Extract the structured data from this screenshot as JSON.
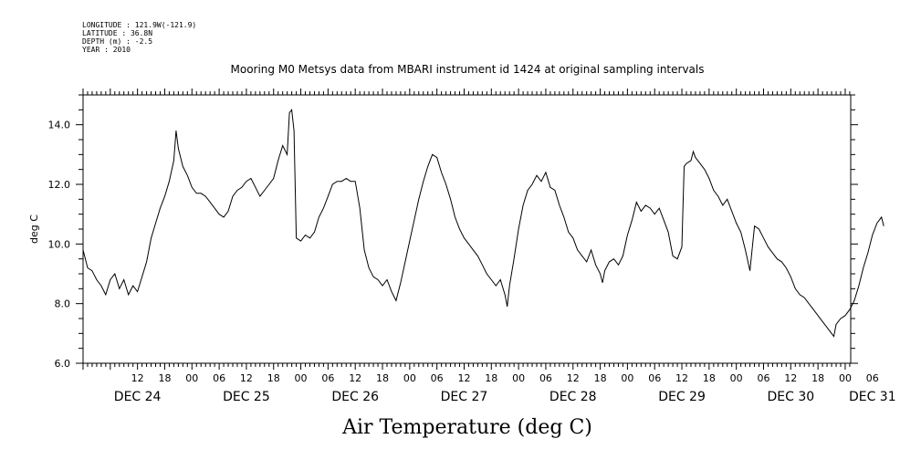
{
  "header": {
    "longitude": "LONGITUDE : 121.9W(-121.9)",
    "latitude": "LATITUDE : 36.8N",
    "depth": "DEPTH (m) : -2.5",
    "year": "YEAR : 2010"
  },
  "chart_data": {
    "type": "line",
    "title": "Mooring M0 Metsys data from MBARI instrument id 1424 at original sampling intervals",
    "xlabel": "Air Temperature (deg C)",
    "ylabel": "deg C",
    "ylim": [
      6.0,
      15.0
    ],
    "yticks": [
      6.0,
      8.0,
      10.0,
      12.0,
      14.0
    ],
    "yticklabels": [
      "6.0",
      "8.0",
      "10.0",
      "12.0",
      "14.0"
    ],
    "xlim_hours_note": "x axis spans DEC 24 00:00 to DEC 31 09:00",
    "xticks": [
      {
        "day": 24,
        "hour": 12,
        "label": "12"
      },
      {
        "day": 24,
        "hour": 18,
        "label": "18"
      },
      {
        "day": 25,
        "hour": 0,
        "label": "00"
      },
      {
        "day": 25,
        "hour": 6,
        "label": "06"
      },
      {
        "day": 25,
        "hour": 12,
        "label": "12"
      },
      {
        "day": 25,
        "hour": 18,
        "label": "18"
      },
      {
        "day": 26,
        "hour": 0,
        "label": "00"
      },
      {
        "day": 26,
        "hour": 6,
        "label": "06"
      },
      {
        "day": 26,
        "hour": 12,
        "label": "12"
      },
      {
        "day": 26,
        "hour": 18,
        "label": "18"
      },
      {
        "day": 27,
        "hour": 0,
        "label": "00"
      },
      {
        "day": 27,
        "hour": 6,
        "label": "06"
      },
      {
        "day": 27,
        "hour": 12,
        "label": "12"
      },
      {
        "day": 27,
        "hour": 18,
        "label": "18"
      },
      {
        "day": 28,
        "hour": 0,
        "label": "00"
      },
      {
        "day": 28,
        "hour": 6,
        "label": "06"
      },
      {
        "day": 28,
        "hour": 12,
        "label": "12"
      },
      {
        "day": 28,
        "hour": 18,
        "label": "18"
      },
      {
        "day": 29,
        "hour": 0,
        "label": "00"
      },
      {
        "day": 29,
        "hour": 6,
        "label": "06"
      },
      {
        "day": 29,
        "hour": 12,
        "label": "12"
      },
      {
        "day": 29,
        "hour": 18,
        "label": "18"
      },
      {
        "day": 30,
        "hour": 0,
        "label": "00"
      },
      {
        "day": 30,
        "hour": 6,
        "label": "06"
      },
      {
        "day": 30,
        "hour": 12,
        "label": "12"
      },
      {
        "day": 30,
        "hour": 18,
        "label": "18"
      },
      {
        "day": 31,
        "hour": 0,
        "label": "00"
      },
      {
        "day": 31,
        "hour": 6,
        "label": "06"
      }
    ],
    "day_labels": [
      {
        "day": 24,
        "hour": 12,
        "label": "DEC 24"
      },
      {
        "day": 25,
        "hour": 12,
        "label": "DEC 25"
      },
      {
        "day": 26,
        "hour": 12,
        "label": "DEC 26"
      },
      {
        "day": 27,
        "hour": 12,
        "label": "DEC 27"
      },
      {
        "day": 28,
        "hour": 12,
        "label": "DEC 28"
      },
      {
        "day": 29,
        "hour": 12,
        "label": "DEC 29"
      },
      {
        "day": 30,
        "hour": 12,
        "label": "DEC 30"
      },
      {
        "day": 31,
        "hour": 6,
        "label": "DEC 31"
      }
    ],
    "series": [
      {
        "color": "#000000",
        "points": [
          [
            "DEC 24 00:00",
            9.8
          ],
          [
            "DEC 24 01:00",
            9.2
          ],
          [
            "DEC 24 02:00",
            9.1
          ],
          [
            "DEC 24 03:00",
            8.8
          ],
          [
            "DEC 24 04:00",
            8.6
          ],
          [
            "DEC 24 05:00",
            8.3
          ],
          [
            "DEC 24 06:00",
            8.8
          ],
          [
            "DEC 24 07:00",
            9.0
          ],
          [
            "DEC 24 08:00",
            8.5
          ],
          [
            "DEC 24 09:00",
            8.8
          ],
          [
            "DEC 24 10:00",
            8.3
          ],
          [
            "DEC 24 11:00",
            8.6
          ],
          [
            "DEC 24 12:00",
            8.4
          ],
          [
            "DEC 24 13:00",
            8.9
          ],
          [
            "DEC 24 14:00",
            9.4
          ],
          [
            "DEC 24 15:00",
            10.2
          ],
          [
            "DEC 24 16:00",
            10.7
          ],
          [
            "DEC 24 17:00",
            11.2
          ],
          [
            "DEC 24 18:00",
            11.6
          ],
          [
            "DEC 24 19:00",
            12.1
          ],
          [
            "DEC 24 20:00",
            12.8
          ],
          [
            "DEC 24 20:30",
            13.8
          ],
          [
            "DEC 24 21:00",
            13.2
          ],
          [
            "DEC 24 22:00",
            12.6
          ],
          [
            "DEC 24 23:00",
            12.3
          ],
          [
            "DEC 25 00:00",
            11.9
          ],
          [
            "DEC 25 01:00",
            11.7
          ],
          [
            "DEC 25 02:00",
            11.7
          ],
          [
            "DEC 25 03:00",
            11.6
          ],
          [
            "DEC 25 04:00",
            11.4
          ],
          [
            "DEC 25 05:00",
            11.2
          ],
          [
            "DEC 25 06:00",
            11.0
          ],
          [
            "DEC 25 07:00",
            10.9
          ],
          [
            "DEC 25 08:00",
            11.1
          ],
          [
            "DEC 25 09:00",
            11.6
          ],
          [
            "DEC 25 10:00",
            11.8
          ],
          [
            "DEC 25 11:00",
            11.9
          ],
          [
            "DEC 25 12:00",
            12.1
          ],
          [
            "DEC 25 13:00",
            12.2
          ],
          [
            "DEC 25 14:00",
            11.9
          ],
          [
            "DEC 25 15:00",
            11.6
          ],
          [
            "DEC 25 16:00",
            11.8
          ],
          [
            "DEC 25 17:00",
            12.0
          ],
          [
            "DEC 25 18:00",
            12.2
          ],
          [
            "DEC 25 19:00",
            12.8
          ],
          [
            "DEC 25 20:00",
            13.3
          ],
          [
            "DEC 25 21:00",
            13.0
          ],
          [
            "DEC 25 21:30",
            14.4
          ],
          [
            "DEC 25 22:00",
            14.5
          ],
          [
            "DEC 25 22:30",
            13.8
          ],
          [
            "DEC 25 23:00",
            10.2
          ],
          [
            "DEC 26 00:00",
            10.1
          ],
          [
            "DEC 26 01:00",
            10.3
          ],
          [
            "DEC 26 02:00",
            10.2
          ],
          [
            "DEC 26 03:00",
            10.4
          ],
          [
            "DEC 26 04:00",
            10.9
          ],
          [
            "DEC 26 05:00",
            11.2
          ],
          [
            "DEC 26 06:00",
            11.6
          ],
          [
            "DEC 26 07:00",
            12.0
          ],
          [
            "DEC 26 08:00",
            12.1
          ],
          [
            "DEC 26 09:00",
            12.1
          ],
          [
            "DEC 26 10:00",
            12.2
          ],
          [
            "DEC 26 11:00",
            12.1
          ],
          [
            "DEC 26 12:00",
            12.1
          ],
          [
            "DEC 26 13:00",
            11.2
          ],
          [
            "DEC 26 14:00",
            9.8
          ],
          [
            "DEC 26 15:00",
            9.2
          ],
          [
            "DEC 26 16:00",
            8.9
          ],
          [
            "DEC 26 17:00",
            8.8
          ],
          [
            "DEC 26 18:00",
            8.6
          ],
          [
            "DEC 26 19:00",
            8.8
          ],
          [
            "DEC 26 20:00",
            8.4
          ],
          [
            "DEC 26 21:00",
            8.1
          ],
          [
            "DEC 26 22:00",
            8.7
          ],
          [
            "DEC 26 23:00",
            9.4
          ],
          [
            "DEC 27 00:00",
            10.1
          ],
          [
            "DEC 27 01:00",
            10.8
          ],
          [
            "DEC 27 02:00",
            11.5
          ],
          [
            "DEC 27 03:00",
            12.1
          ],
          [
            "DEC 27 04:00",
            12.6
          ],
          [
            "DEC 27 05:00",
            13.0
          ],
          [
            "DEC 27 06:00",
            12.9
          ],
          [
            "DEC 27 07:00",
            12.4
          ],
          [
            "DEC 27 08:00",
            12.0
          ],
          [
            "DEC 27 09:00",
            11.5
          ],
          [
            "DEC 27 10:00",
            10.9
          ],
          [
            "DEC 27 11:00",
            10.5
          ],
          [
            "DEC 27 12:00",
            10.2
          ],
          [
            "DEC 27 13:00",
            10.0
          ],
          [
            "DEC 27 14:00",
            9.8
          ],
          [
            "DEC 27 15:00",
            9.6
          ],
          [
            "DEC 27 16:00",
            9.3
          ],
          [
            "DEC 27 17:00",
            9.0
          ],
          [
            "DEC 27 18:00",
            8.8
          ],
          [
            "DEC 27 19:00",
            8.6
          ],
          [
            "DEC 27 20:00",
            8.8
          ],
          [
            "DEC 27 21:00",
            8.3
          ],
          [
            "DEC 27 21:30",
            7.9
          ],
          [
            "DEC 27 22:00",
            8.6
          ],
          [
            "DEC 27 23:00",
            9.5
          ],
          [
            "DEC 28 00:00",
            10.5
          ],
          [
            "DEC 28 01:00",
            11.3
          ],
          [
            "DEC 28 02:00",
            11.8
          ],
          [
            "DEC 28 03:00",
            12.0
          ],
          [
            "DEC 28 04:00",
            12.3
          ],
          [
            "DEC 28 05:00",
            12.1
          ],
          [
            "DEC 28 06:00",
            12.4
          ],
          [
            "DEC 28 07:00",
            11.9
          ],
          [
            "DEC 28 08:00",
            11.8
          ],
          [
            "DEC 28 09:00",
            11.3
          ],
          [
            "DEC 28 10:00",
            10.9
          ],
          [
            "DEC 28 11:00",
            10.4
          ],
          [
            "DEC 28 12:00",
            10.2
          ],
          [
            "DEC 28 13:00",
            9.8
          ],
          [
            "DEC 28 14:00",
            9.6
          ],
          [
            "DEC 28 15:00",
            9.4
          ],
          [
            "DEC 28 16:00",
            9.8
          ],
          [
            "DEC 28 17:00",
            9.3
          ],
          [
            "DEC 28 18:00",
            9.0
          ],
          [
            "DEC 28 18:30",
            8.7
          ],
          [
            "DEC 28 19:00",
            9.1
          ],
          [
            "DEC 28 20:00",
            9.4
          ],
          [
            "DEC 28 21:00",
            9.5
          ],
          [
            "DEC 28 22:00",
            9.3
          ],
          [
            "DEC 28 23:00",
            9.6
          ],
          [
            "DEC 29 00:00",
            10.3
          ],
          [
            "DEC 29 01:00",
            10.8
          ],
          [
            "DEC 29 02:00",
            11.4
          ],
          [
            "DEC 29 03:00",
            11.1
          ],
          [
            "DEC 29 04:00",
            11.3
          ],
          [
            "DEC 29 05:00",
            11.2
          ],
          [
            "DEC 29 06:00",
            11.0
          ],
          [
            "DEC 29 07:00",
            11.2
          ],
          [
            "DEC 29 08:00",
            10.8
          ],
          [
            "DEC 29 09:00",
            10.4
          ],
          [
            "DEC 29 10:00",
            9.6
          ],
          [
            "DEC 29 11:00",
            9.5
          ],
          [
            "DEC 29 12:00",
            9.9
          ],
          [
            "DEC 29 12:30",
            12.6
          ],
          [
            "DEC 29 13:00",
            12.7
          ],
          [
            "DEC 29 14:00",
            12.8
          ],
          [
            "DEC 29 14:30",
            13.1
          ],
          [
            "DEC 29 15:00",
            12.9
          ],
          [
            "DEC 29 16:00",
            12.7
          ],
          [
            "DEC 29 17:00",
            12.5
          ],
          [
            "DEC 29 18:00",
            12.2
          ],
          [
            "DEC 29 19:00",
            11.8
          ],
          [
            "DEC 29 20:00",
            11.6
          ],
          [
            "DEC 29 21:00",
            11.3
          ],
          [
            "DEC 29 22:00",
            11.5
          ],
          [
            "DEC 29 23:00",
            11.1
          ],
          [
            "DEC 30 00:00",
            10.7
          ],
          [
            "DEC 30 01:00",
            10.4
          ],
          [
            "DEC 30 02:00",
            9.8
          ],
          [
            "DEC 30 03:00",
            9.1
          ],
          [
            "DEC 30 04:00",
            10.6
          ],
          [
            "DEC 30 05:00",
            10.5
          ],
          [
            "DEC 30 06:00",
            10.2
          ],
          [
            "DEC 30 07:00",
            9.9
          ],
          [
            "DEC 30 08:00",
            9.7
          ],
          [
            "DEC 30 09:00",
            9.5
          ],
          [
            "DEC 30 10:00",
            9.4
          ],
          [
            "DEC 30 11:00",
            9.2
          ],
          [
            "DEC 30 12:00",
            8.9
          ],
          [
            "DEC 30 13:00",
            8.5
          ],
          [
            "DEC 30 14:00",
            8.3
          ],
          [
            "DEC 30 15:00",
            8.2
          ],
          [
            "DEC 30 16:00",
            8.0
          ],
          [
            "DEC 30 17:00",
            7.8
          ],
          [
            "DEC 30 18:00",
            7.6
          ],
          [
            "DEC 30 19:00",
            7.4
          ],
          [
            "DEC 30 20:00",
            7.2
          ],
          [
            "DEC 30 21:00",
            7.0
          ],
          [
            "DEC 30 21:30",
            6.9
          ],
          [
            "DEC 30 22:00",
            7.3
          ],
          [
            "DEC 30 23:00",
            7.5
          ],
          [
            "DEC 31 00:00",
            7.6
          ],
          [
            "DEC 31 01:00",
            7.8
          ],
          [
            "DEC 31 02:00",
            8.1
          ],
          [
            "DEC 31 03:00",
            8.6
          ],
          [
            "DEC 31 04:00",
            9.2
          ],
          [
            "DEC 31 05:00",
            9.7
          ],
          [
            "DEC 31 06:00",
            10.3
          ],
          [
            "DEC 31 07:00",
            10.7
          ],
          [
            "DEC 31 08:00",
            10.9
          ],
          [
            "DEC 31 08:30",
            10.6
          ]
        ]
      }
    ],
    "grid": false,
    "axis_ticks": "minor ticks on all four sides"
  }
}
